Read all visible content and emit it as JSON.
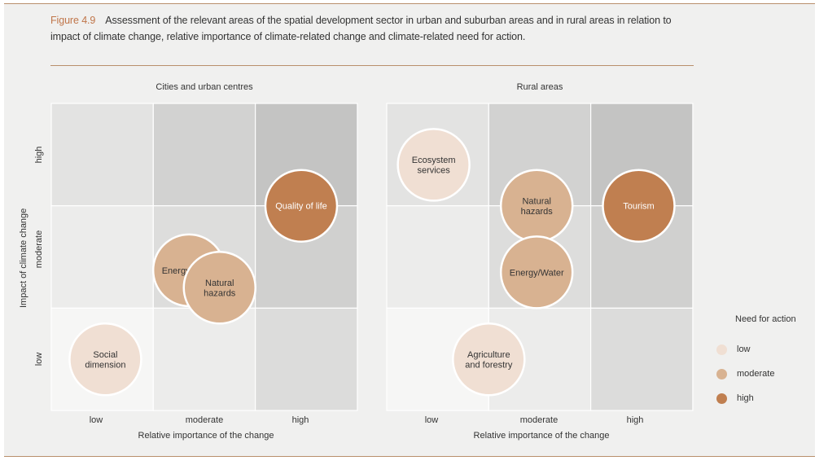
{
  "figure": {
    "number": "Figure 4.9",
    "caption": "Assessment of the relevant areas of the spatial development sector in urban and suburban areas and in rural areas in relation to impact of climate change, relative importance of climate-related change and climate-related need for action."
  },
  "y_axis_title": "Impact of climate change",
  "legend": {
    "title": "Need for action",
    "items": [
      {
        "label": "low",
        "color": "#f0dfd3"
      },
      {
        "label": "moderate",
        "color": "#d8b291"
      },
      {
        "label": "high",
        "color": "#c07f50"
      }
    ]
  },
  "chart_data": [
    {
      "type": "scatter",
      "title": "Cities and urban centres",
      "xlabel": "Relative importance of the change",
      "ylabel": "Impact of climate change",
      "x_categories": [
        "low",
        "moderate",
        "high"
      ],
      "y_categories": [
        "low",
        "moderate",
        "high"
      ],
      "points": [
        {
          "label": "Social dimension",
          "x": 0.53,
          "y": 0.5,
          "need": "low"
        },
        {
          "label": "Energy/Water",
          "x": 1.35,
          "y": 1.37,
          "need": "moderate"
        },
        {
          "label": "Natural hazards",
          "x": 1.65,
          "y": 1.2,
          "need": "moderate"
        },
        {
          "label": "Quality of life",
          "x": 2.45,
          "y": 2.0,
          "need": "high"
        }
      ]
    },
    {
      "type": "scatter",
      "title": "Rural areas",
      "xlabel": "Relative importance of the change",
      "ylabel": "Impact of climate change",
      "x_categories": [
        "low",
        "moderate",
        "high"
      ],
      "y_categories": [
        "low",
        "moderate",
        "high"
      ],
      "points": [
        {
          "label": "Ecosystem services",
          "x": 0.46,
          "y": 2.4,
          "need": "low"
        },
        {
          "label": "Natural hazards",
          "x": 1.47,
          "y": 2.0,
          "need": "moderate"
        },
        {
          "label": "Energy/Water",
          "x": 1.47,
          "y": 1.35,
          "need": "moderate"
        },
        {
          "label": "Tourism",
          "x": 2.47,
          "y": 2.0,
          "need": "high"
        },
        {
          "label": "Agriculture and forestry",
          "x": 1.0,
          "y": 0.5,
          "need": "low"
        }
      ]
    }
  ]
}
